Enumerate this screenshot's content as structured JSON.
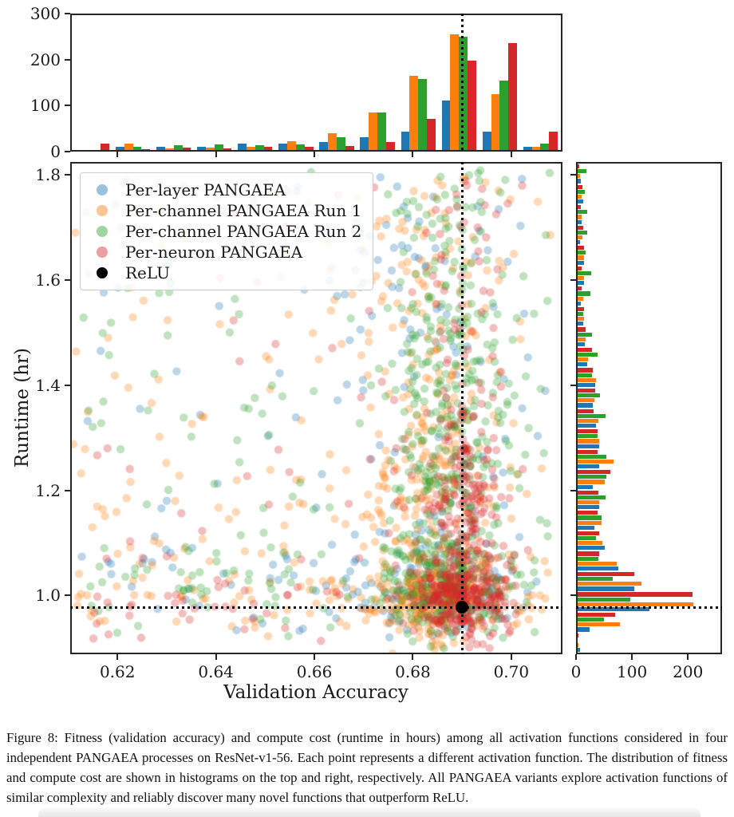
{
  "figure": {
    "caption": "Figure 8: Fitness (validation accuracy) and compute cost (runtime in hours) among all activation functions considered in four independent PANGAEA processes on ResNet-v1-56. Each point represents a different activation function. The distribution of fitness and compute cost are shown in histograms on the top and right, respectively. All PANGAEA variants explore activation functions of similar complexity and reliably discover many novel functions that outperform ReLU."
  },
  "chart_data": {
    "type": "scatter",
    "colors": {
      "blue": "#1f77b4",
      "orange": "#ff7f0e",
      "green": "#2ca02c",
      "red": "#d62728",
      "black": "#000000"
    },
    "scatter": {
      "title": "",
      "xlabel": "Validation Accuracy",
      "ylabel": "Runtime (hr)",
      "xlim": [
        0.6104,
        0.7104
      ],
      "ylim": [
        0.888,
        1.825
      ],
      "xticks": [
        0.62,
        0.64,
        0.66,
        0.68,
        0.7
      ],
      "xtick_labels": [
        "0.62",
        "0.64",
        "0.66",
        "0.68",
        "0.70"
      ],
      "yticks": [
        1.0,
        1.2,
        1.4,
        1.6,
        1.8
      ],
      "ytick_labels": [
        "1.0",
        "1.2",
        "1.4",
        "1.6",
        "1.8"
      ],
      "grid": false,
      "point_alpha": 0.3,
      "point_radius": 5.2,
      "seed": 20210642,
      "relu_point": {
        "x": 0.69,
        "y": 0.977,
        "label": "ReLU"
      },
      "dotted_lines": {
        "x": 0.69,
        "y": 0.977
      },
      "legend_position": "upper-left",
      "legend": [
        {
          "label": "Per-layer PANGAEA",
          "color": "#1f77b4",
          "alpha": 0.45
        },
        {
          "label": "Per-channel PANGAEA Run 1",
          "color": "#ff7f0e",
          "alpha": 0.45
        },
        {
          "label": "Per-channel PANGAEA Run 2",
          "color": "#2ca02c",
          "alpha": 0.45
        },
        {
          "label": "Per-neuron PANGAEA",
          "color": "#d62728",
          "alpha": 0.45
        },
        {
          "label": "ReLU",
          "color": "#000000",
          "alpha": 1.0
        }
      ],
      "series": [
        {
          "name": "Per-layer PANGAEA",
          "color": "#1f77b4",
          "count": 290,
          "x_mix": [
            {
              "kind": "normal",
              "mean": 0.684,
              "std": 0.009,
              "w": 0.72
            },
            {
              "kind": "uniform",
              "min": 0.612,
              "max": 0.706,
              "w": 0.28
            }
          ],
          "y_mix": [
            {
              "kind": "normal",
              "mean": 1.02,
              "std": 0.05,
              "w": 0.45
            },
            {
              "kind": "uniform",
              "min": 0.93,
              "max": 1.8,
              "w": 0.55
            }
          ]
        },
        {
          "name": "Per-channel PANGAEA Run 1",
          "color": "#ff7f0e",
          "count": 700,
          "x_mix": [
            {
              "kind": "normal",
              "mean": 0.6835,
              "std": 0.0065,
              "w": 0.68
            },
            {
              "kind": "uniform",
              "min": 0.611,
              "max": 0.708,
              "w": 0.32
            }
          ],
          "y_mix": [
            {
              "kind": "normal",
              "mean": 0.995,
              "std": 0.04,
              "w": 0.42
            },
            {
              "kind": "normal",
              "mean": 1.17,
              "std": 0.1,
              "w": 0.18
            },
            {
              "kind": "uniform",
              "min": 0.93,
              "max": 1.8,
              "w": 0.4
            }
          ]
        },
        {
          "name": "Per-channel PANGAEA Run 2",
          "color": "#2ca02c",
          "count": 700,
          "x_mix": [
            {
              "kind": "normal",
              "mean": 0.687,
              "std": 0.006,
              "w": 0.72
            },
            {
              "kind": "uniform",
              "min": 0.613,
              "max": 0.708,
              "w": 0.28
            }
          ],
          "y_mix": [
            {
              "kind": "normal",
              "mean": 1.02,
              "std": 0.05,
              "w": 0.3
            },
            {
              "kind": "normal",
              "mean": 1.3,
              "std": 0.14,
              "w": 0.3
            },
            {
              "kind": "uniform",
              "min": 0.95,
              "max": 1.81,
              "w": 0.4
            }
          ]
        },
        {
          "name": "Per-neuron PANGAEA",
          "color": "#d62728",
          "count": 620,
          "x_mix": [
            {
              "kind": "normal",
              "mean": 0.69,
              "std": 0.0045,
              "w": 0.85
            },
            {
              "kind": "uniform",
              "min": 0.615,
              "max": 0.705,
              "w": 0.15
            }
          ],
          "y_mix": [
            {
              "kind": "normal",
              "mean": 0.99,
              "std": 0.035,
              "w": 0.5
            },
            {
              "kind": "normal",
              "mean": 1.16,
              "std": 0.1,
              "w": 0.28
            },
            {
              "kind": "uniform",
              "min": 0.95,
              "max": 1.8,
              "w": 0.22
            }
          ]
        }
      ]
    },
    "top_histogram": {
      "type": "bar",
      "orientation": "vertical",
      "ylim": [
        0,
        300
      ],
      "yticks": [
        0,
        100,
        200,
        300
      ],
      "ytick_labels": [
        "0",
        "100",
        "200",
        "300"
      ],
      "n_groups": 12,
      "series": [
        {
          "name": "Per-layer PANGAEA",
          "color": "#1f77b4",
          "values": [
            0,
            7,
            7,
            8,
            15,
            15,
            17,
            28,
            41,
            110,
            40,
            8
          ]
        },
        {
          "name": "Per-channel PANGAEA Run 1",
          "color": "#ff7f0e",
          "values": [
            0,
            14,
            3,
            5,
            7,
            20,
            37,
            84,
            165,
            257,
            125,
            8
          ]
        },
        {
          "name": "Per-channel PANGAEA Run 2",
          "color": "#2ca02c",
          "values": [
            0,
            7,
            11,
            12,
            10,
            13,
            28,
            83,
            158,
            252,
            155,
            15
          ]
        },
        {
          "name": "Per-neuron PANGAEA",
          "color": "#d62728",
          "values": [
            15,
            2,
            5,
            3,
            8,
            7,
            9,
            17,
            69,
            198,
            238,
            40
          ]
        }
      ]
    },
    "right_histogram": {
      "type": "bar",
      "orientation": "horizontal",
      "xlim": [
        0,
        261
      ],
      "xticks": [
        0,
        100,
        200
      ],
      "xtick_labels": [
        "0",
        "100",
        "200"
      ],
      "bins_order": "runtime high (1.82) at top to low (0.86) at bottom",
      "n_groups": 24,
      "series": [
        {
          "name": "Per-layer PANGAEA",
          "color": "#1f77b4",
          "values": [
            6,
            10,
            7,
            5,
            12,
            12,
            6,
            10,
            13,
            17,
            32,
            27,
            33,
            40,
            40,
            28,
            40,
            31,
            50,
            75,
            104,
            131,
            22,
            5
          ]
        },
        {
          "name": "Per-channel PANGAEA Run 1",
          "color": "#ff7f0e",
          "values": [
            4,
            7,
            8,
            9,
            12,
            11,
            10,
            11,
            15,
            19,
            33,
            31,
            38,
            39,
            66,
            50,
            40,
            44,
            45,
            72,
            117,
            212,
            77,
            2
          ]
        },
        {
          "name": "Per-channel PANGAEA Run 2",
          "color": "#2ca02c",
          "values": [
            16,
            13,
            18,
            17,
            15,
            25,
            23,
            10,
            26,
            36,
            26,
            41,
            51,
            37,
            53,
            52,
            51,
            44,
            33,
            38,
            64,
            96,
            48,
            0
          ]
        },
        {
          "name": "Per-neuron PANGAEA",
          "color": "#d62728",
          "values": [
            3,
            9,
            6,
            10,
            11,
            7,
            7,
            11,
            14,
            26,
            28,
            32,
            29,
            36,
            36,
            60,
            38,
            37,
            40,
            40,
            103,
            210,
            68,
            2
          ]
        }
      ]
    }
  }
}
